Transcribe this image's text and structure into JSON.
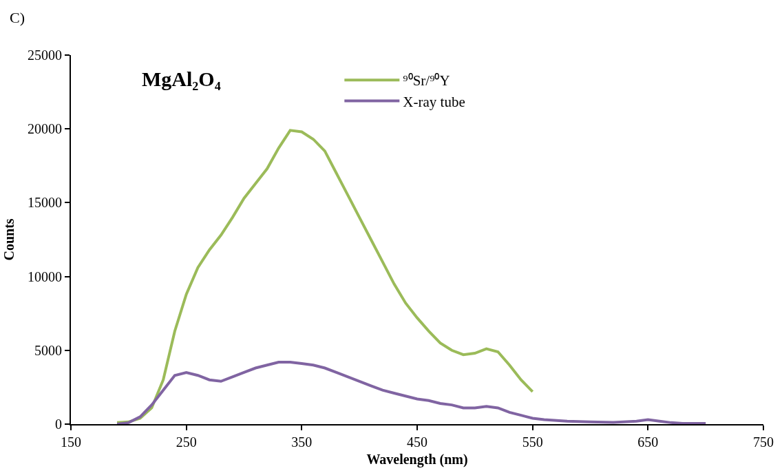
{
  "chart_data": {
    "type": "line",
    "title": "MgAl₂O₄",
    "xlabel": "Wavelength (nm)",
    "ylabel": "Counts",
    "annotations": [
      "C)"
    ],
    "xlim": [
      150,
      750
    ],
    "xticks": [
      150,
      250,
      350,
      450,
      550,
      650,
      750
    ],
    "ylim": [
      0,
      25000
    ],
    "yticks": [
      0,
      5000,
      10000,
      15000,
      20000,
      25000
    ],
    "legend": "top",
    "marker": "none",
    "line_style": "solid",
    "series": [
      {
        "name": "⁹⁰Sr/⁹⁰Y",
        "color": "#9bbb59",
        "x": [
          190,
          200,
          210,
          220,
          230,
          240,
          250,
          260,
          270,
          280,
          290,
          300,
          310,
          320,
          330,
          340,
          350,
          360,
          370,
          380,
          390,
          400,
          410,
          420,
          430,
          440,
          450,
          460,
          470,
          480,
          490,
          500,
          510,
          520,
          530,
          540,
          550
        ],
        "values": [
          100,
          150,
          400,
          1100,
          3000,
          6300,
          8800,
          10600,
          11800,
          12800,
          14000,
          15300,
          16300,
          17300,
          18700,
          19900,
          19800,
          19300,
          18500,
          17000,
          15500,
          14000,
          12500,
          11000,
          9500,
          8200,
          7200,
          6300,
          5500,
          5000,
          4700,
          4800,
          5100,
          4900,
          4000,
          3000,
          2200
        ]
      },
      {
        "name": "X-ray tube",
        "color": "#8064a2",
        "x": [
          190,
          200,
          210,
          220,
          230,
          240,
          250,
          260,
          270,
          280,
          290,
          300,
          310,
          320,
          330,
          340,
          350,
          360,
          370,
          380,
          390,
          400,
          410,
          420,
          430,
          440,
          450,
          460,
          470,
          480,
          490,
          500,
          510,
          520,
          530,
          540,
          550,
          560,
          580,
          600,
          620,
          640,
          650,
          660,
          670,
          680,
          700
        ],
        "values": [
          0,
          100,
          500,
          1300,
          2300,
          3300,
          3500,
          3300,
          3000,
          2900,
          3200,
          3500,
          3800,
          4000,
          4200,
          4200,
          4100,
          4000,
          3800,
          3500,
          3200,
          2900,
          2600,
          2300,
          2100,
          1900,
          1700,
          1600,
          1400,
          1300,
          1100,
          1100,
          1200,
          1100,
          800,
          600,
          400,
          300,
          200,
          150,
          120,
          200,
          300,
          200,
          100,
          50,
          50
        ]
      }
    ]
  }
}
